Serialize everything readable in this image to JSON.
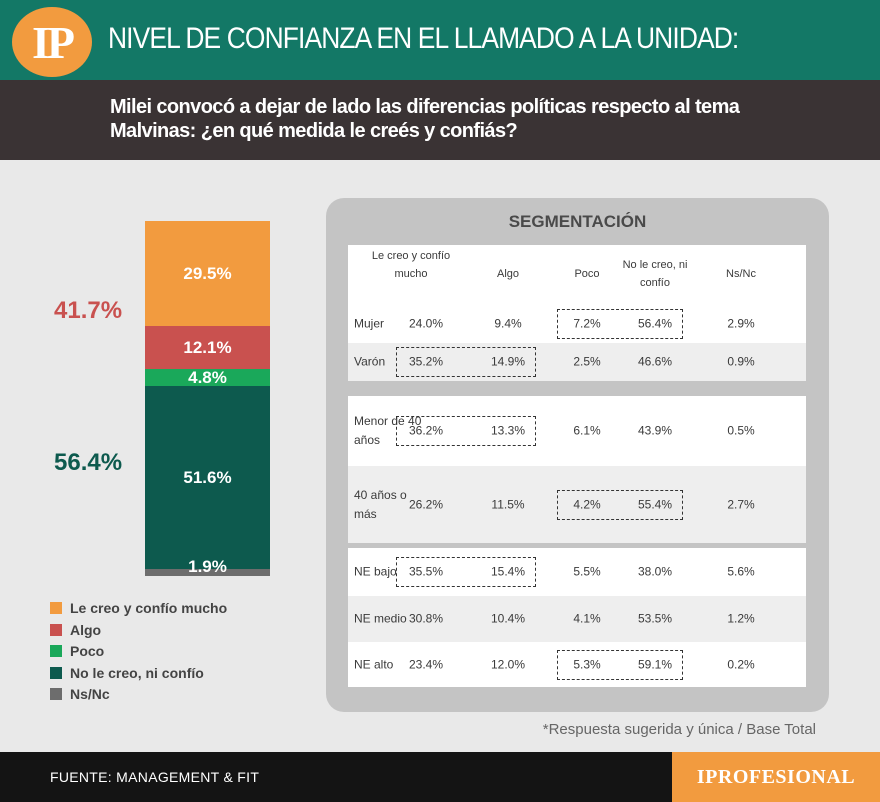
{
  "header": {
    "logo": "IP",
    "title": "NIVEL DE CONFIANZA EN EL LLAMADO A LA UNIDAD:",
    "subtitle": "Milei convocó a dejar de lado las diferencias políticas respecto al tema Malvinas: ¿en qué medida le creés y confiás?"
  },
  "colors": {
    "mucho": "#f29b3f",
    "algo": "#c9514f",
    "poco": "#1aa85a",
    "no": "#0d5a4e",
    "nsnc": "#6d6d6d"
  },
  "chart_data": {
    "type": "bar",
    "stacked": true,
    "series": [
      {
        "name": "Le creo y confío mucho",
        "value": 29.5,
        "label": "29.5%"
      },
      {
        "name": "Algo",
        "value": 12.1,
        "label": "12.1%"
      },
      {
        "name": "Poco",
        "value": 4.8,
        "label": "4.8%"
      },
      {
        "name": "No le creo, ni confío",
        "value": 51.6,
        "label": "51.6%"
      },
      {
        "name": "Ns/Nc",
        "value": 1.9,
        "label": "1.9%"
      }
    ],
    "totals": {
      "confia": "41.7%",
      "no_confia": "56.4%"
    }
  },
  "legend": [
    "Le creo y confío mucho",
    "Algo",
    "Poco",
    "No le creo, ni confío",
    "Ns/Nc"
  ],
  "segmentation": {
    "title": "SEGMENTACIÓN",
    "headers": [
      "Le creo y confío mucho",
      "Algo",
      "Poco",
      "No le creo, ni confío",
      "Ns/Nc"
    ],
    "groups": [
      {
        "rows": [
          {
            "label": "Mujer",
            "values": [
              "24.0%",
              "9.4%",
              "7.2%",
              "56.4%",
              "2.9%"
            ]
          },
          {
            "label": "Varón",
            "values": [
              "35.2%",
              "14.9%",
              "2.5%",
              "46.6%",
              "0.9%"
            ]
          }
        ]
      },
      {
        "rows": [
          {
            "label": "Menor de 40 años",
            "values": [
              "36.2%",
              "13.3%",
              "6.1%",
              "43.9%",
              "0.5%"
            ]
          },
          {
            "label": "40 años o más",
            "values": [
              "26.2%",
              "11.5%",
              "4.2%",
              "55.4%",
              "2.7%"
            ]
          }
        ]
      },
      {
        "rows": [
          {
            "label": "NE bajo",
            "values": [
              "35.5%",
              "15.4%",
              "5.5%",
              "38.0%",
              "5.6%"
            ]
          },
          {
            "label": "NE medio",
            "values": [
              "30.8%",
              "10.4%",
              "4.1%",
              "53.5%",
              "1.2%"
            ]
          },
          {
            "label": "NE alto",
            "values": [
              "23.4%",
              "12.0%",
              "5.3%",
              "59.1%",
              "0.2%"
            ]
          }
        ]
      }
    ]
  },
  "footnote": "*Respuesta sugerida y única / Base Total",
  "footer": {
    "source": "FUENTE: MANAGEMENT & FIT",
    "brand": "IPROFESIONAL"
  }
}
